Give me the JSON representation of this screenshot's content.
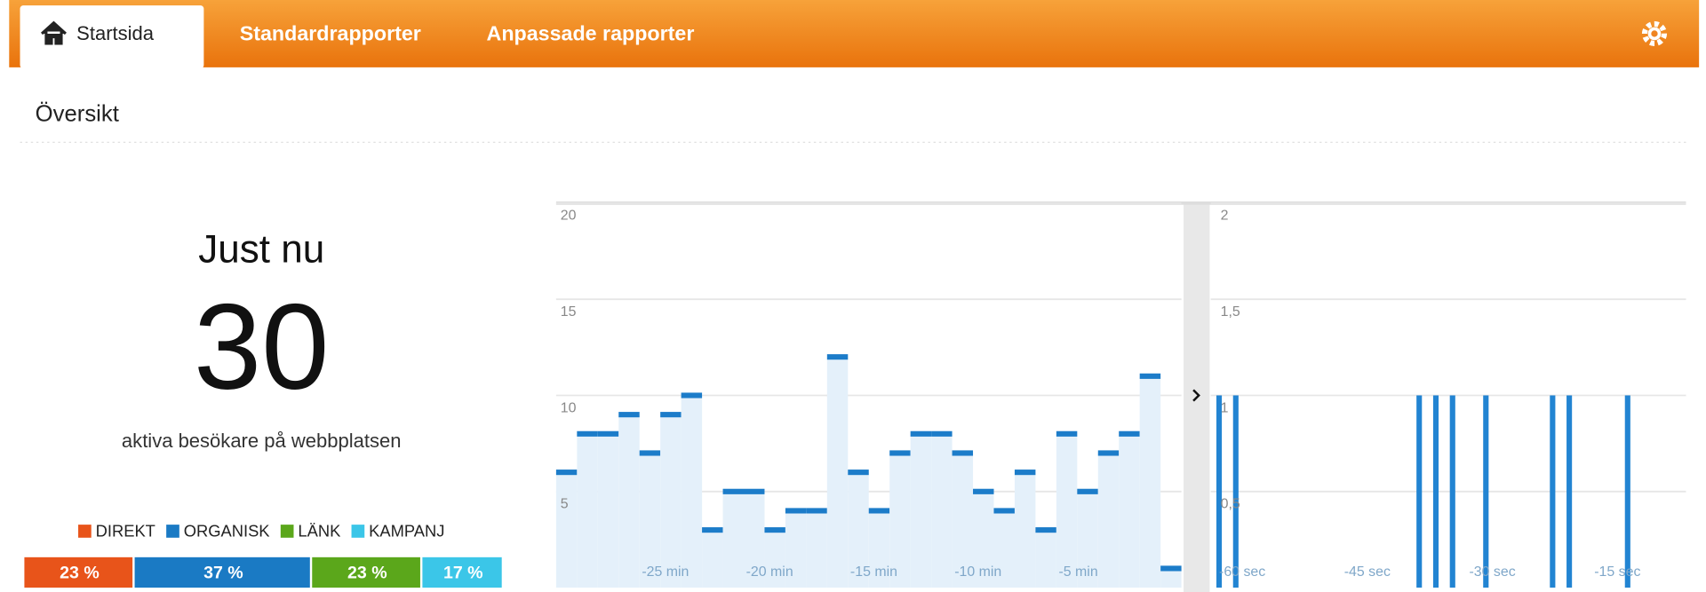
{
  "nav": {
    "tabs": [
      "Startsida",
      "Standardrapporter",
      "Anpassade rapporter"
    ]
  },
  "page_title": "Översikt",
  "summary": {
    "heading": "Just nu",
    "count": 30,
    "caption": "aktiva besökare på webbplatsen"
  },
  "chart_data": [
    {
      "type": "share",
      "categories": [
        "DIREKT",
        "ORGANISK",
        "LÄNK",
        "KAMPANJ"
      ],
      "values": [
        23,
        37,
        23,
        17
      ],
      "value_labels": [
        "23 %",
        "37 %",
        "23 %",
        "17 %"
      ],
      "colors": [
        "#e8541a",
        "#1a7ac4",
        "#5ba71b",
        "#3bc6e8"
      ]
    },
    {
      "type": "bar",
      "x": [
        -30,
        -29,
        -28,
        -27,
        -26,
        -25,
        -24,
        -23,
        -22,
        -21,
        -20,
        -19,
        -18,
        -17,
        -16,
        -15,
        -14,
        -13,
        -12,
        -11,
        -10,
        -9,
        -8,
        -7,
        -6,
        -5,
        -4,
        -3,
        -2,
        -1
      ],
      "values": [
        6,
        8,
        8,
        9,
        7,
        9,
        10,
        3,
        5,
        5,
        3,
        4,
        4,
        12,
        6,
        4,
        7,
        8,
        8,
        7,
        5,
        4,
        6,
        3,
        8,
        5,
        7,
        8,
        11,
        1
      ],
      "xlim": [
        -30,
        0
      ],
      "ylim": [
        0,
        20
      ],
      "xticks": [
        {
          "value": -25,
          "label": "-25 min"
        },
        {
          "value": -20,
          "label": "-20 min"
        },
        {
          "value": -15,
          "label": "-15 min"
        },
        {
          "value": -10,
          "label": "-10 min"
        },
        {
          "value": -5,
          "label": "-5 min"
        }
      ],
      "yticks": [
        5,
        10,
        15,
        20
      ],
      "color": "#1c7cc9",
      "fill": "#e4f0fa",
      "grid": true
    },
    {
      "type": "bar",
      "x": [
        -60,
        -58,
        -36,
        -34,
        -32,
        -28,
        -20,
        -18,
        -11
      ],
      "values": [
        1,
        1,
        1,
        1,
        1,
        1,
        1,
        1,
        1
      ],
      "xlim": [
        -61,
        -4
      ],
      "ylim": [
        0,
        2
      ],
      "xticks": [
        {
          "value": -60,
          "label": "-60 sec"
        },
        {
          "value": -45,
          "label": "-45 sec"
        },
        {
          "value": -30,
          "label": "-30 sec"
        },
        {
          "value": -15,
          "label": "-15 sec"
        }
      ],
      "yticks": [
        {
          "value": 0.5,
          "label": "0,5"
        },
        1,
        {
          "value": 1.5,
          "label": "1,5"
        },
        2
      ],
      "color": "#2284d2",
      "grid": true
    }
  ]
}
